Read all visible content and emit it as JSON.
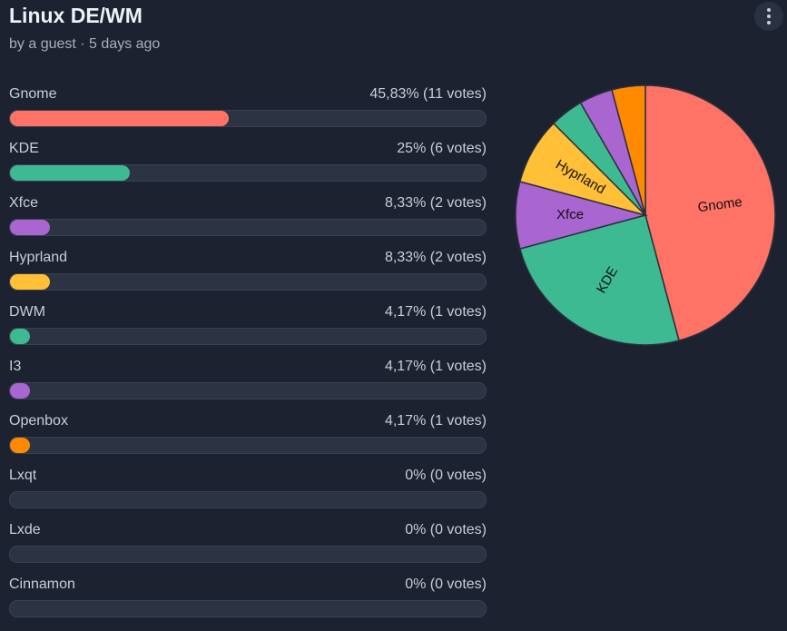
{
  "poll": {
    "title": "Linux DE/WM",
    "byline": "by a guest · 5 days ago"
  },
  "menu": {
    "icon": "more-vertical-icon"
  },
  "options": [
    {
      "label": "Gnome",
      "result": "45,83% (11 votes)",
      "fraction": 0.4583,
      "color": "#ff7366"
    },
    {
      "label": "KDE",
      "result": "25% (6 votes)",
      "fraction": 0.25,
      "color": "#3dba92"
    },
    {
      "label": "Xfce",
      "result": "8,33% (2 votes)",
      "fraction": 0.0833,
      "color": "#a965d0"
    },
    {
      "label": "Hyprland",
      "result": "8,33% (2 votes)",
      "fraction": 0.0833,
      "color": "#ffc038"
    },
    {
      "label": "DWM",
      "result": "4,17% (1 votes)",
      "fraction": 0.0417,
      "color": "#3dba92"
    },
    {
      "label": "I3",
      "result": "4,17% (1 votes)",
      "fraction": 0.0417,
      "color": "#a965d0"
    },
    {
      "label": "Openbox",
      "result": "4,17% (1 votes)",
      "fraction": 0.0417,
      "color": "#ff8a00"
    },
    {
      "label": "Lxqt",
      "result": "0% (0 votes)",
      "fraction": 0,
      "color": "#ff7366"
    },
    {
      "label": "Lxde",
      "result": "0% (0 votes)",
      "fraction": 0,
      "color": "#3dba92"
    },
    {
      "label": "Cinnamon",
      "result": "0% (0 votes)",
      "fraction": 0,
      "color": "#a965d0"
    }
  ],
  "chart_data": {
    "type": "pie",
    "slices": [
      {
        "label": "Gnome",
        "value": 11,
        "color": "#ff7366",
        "show_label": true
      },
      {
        "label": "KDE",
        "value": 6,
        "color": "#3dba92",
        "show_label": true
      },
      {
        "label": "Xfce",
        "value": 2,
        "color": "#a965d0",
        "show_label": true
      },
      {
        "label": "Hyprland",
        "value": 2,
        "color": "#ffc038",
        "show_label": true
      },
      {
        "label": "DWM",
        "value": 1,
        "color": "#3dba92",
        "show_label": false
      },
      {
        "label": "I3",
        "value": 1,
        "color": "#a965d0",
        "show_label": false
      },
      {
        "label": "Openbox",
        "value": 1,
        "color": "#ff8a00",
        "show_label": false
      }
    ],
    "direction": "clockwise from top"
  }
}
